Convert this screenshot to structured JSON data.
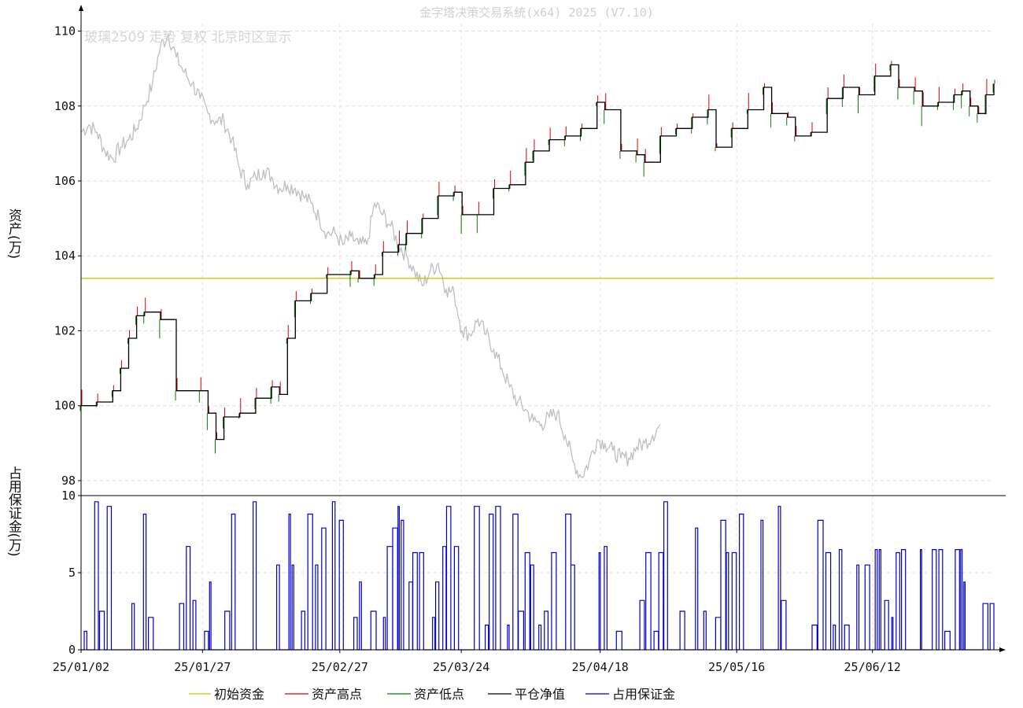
{
  "title": "金字塔决策交易系统(x64) 2025 (V7.10)",
  "subtitle": "玻璃2509 走势 复权 北京时区显示",
  "chart_data": [
    {
      "type": "line",
      "ylabel": "资产(万)",
      "ylim": [
        97.6,
        110.2
      ],
      "y_ticks": [
        "110",
        "108",
        "106",
        "104",
        "102",
        "100",
        "98"
      ],
      "x_ticks": [
        "25/01/02",
        "25/01/27",
        "25/02/27",
        "25/03/24",
        "25/04/18",
        "25/05/16",
        "25/06/12"
      ],
      "grid": true,
      "legend_position": "bottom",
      "series": [
        {
          "name": "初始资金",
          "color": "#c8c800",
          "values": [
            103.4
          ]
        },
        {
          "name": "资产高点",
          "color": "#e00000"
        },
        {
          "name": "资产低点",
          "color": "#008000"
        },
        {
          "name": "平仓净值",
          "color": "#000000",
          "points": [
            [
              0,
              100
            ],
            [
              2,
              100.1
            ],
            [
              4,
              100.4
            ],
            [
              5,
              101.0
            ],
            [
              6,
              101.8
            ],
            [
              7,
              102.4
            ],
            [
              8,
              102.5
            ],
            [
              10,
              102.3
            ],
            [
              12,
              100.4
            ],
            [
              15,
              100.4
            ],
            [
              16,
              99.8
            ],
            [
              17,
              99.1
            ],
            [
              18,
              99.7
            ],
            [
              20,
              99.8
            ],
            [
              22,
              100.2
            ],
            [
              24,
              100.5
            ],
            [
              25,
              100.3
            ],
            [
              26,
              101.8
            ],
            [
              27,
              102.8
            ],
            [
              29,
              103.0
            ],
            [
              31,
              103.5
            ],
            [
              34,
              103.6
            ],
            [
              35,
              103.4
            ],
            [
              37,
              103.5
            ],
            [
              38,
              104.1
            ],
            [
              40,
              104.3
            ],
            [
              41,
              104.6
            ],
            [
              43,
              105.0
            ],
            [
              45,
              105.6
            ],
            [
              47,
              105.7
            ],
            [
              48,
              105.1
            ],
            [
              50,
              105.1
            ],
            [
              52,
              105.8
            ],
            [
              54,
              105.9
            ],
            [
              56,
              106.5
            ],
            [
              57,
              106.8
            ],
            [
              59,
              107.1
            ],
            [
              61,
              107.2
            ],
            [
              63,
              107.4
            ],
            [
              65,
              108.1
            ],
            [
              66,
              107.9
            ],
            [
              68,
              106.8
            ],
            [
              70,
              106.7
            ],
            [
              71,
              106.5
            ],
            [
              73,
              107.2
            ],
            [
              75,
              107.4
            ],
            [
              77,
              107.7
            ],
            [
              79,
              107.9
            ],
            [
              80,
              106.9
            ],
            [
              82,
              107.4
            ],
            [
              84,
              107.9
            ],
            [
              86,
              108.5
            ],
            [
              87,
              107.8
            ],
            [
              89,
              107.7
            ],
            [
              90,
              107.2
            ],
            [
              92,
              107.3
            ],
            [
              94,
              108.2
            ],
            [
              96,
              108.5
            ],
            [
              98,
              108.3
            ],
            [
              100,
              108.8
            ],
            [
              102,
              109.1
            ],
            [
              103,
              108.5
            ],
            [
              105,
              108.4
            ],
            [
              106,
              108.0
            ],
            [
              108,
              108.1
            ],
            [
              110,
              108.3
            ],
            [
              111,
              108.4
            ],
            [
              112,
              108.0
            ],
            [
              113,
              107.8
            ],
            [
              114,
              108.3
            ],
            [
              115,
              108.6
            ]
          ]
        },
        {
          "name": "占用保证金",
          "color": "#0000cc"
        }
      ]
    },
    {
      "type": "line",
      "ylabel": "占用保证金(万)",
      "ylim": [
        0,
        10
      ],
      "y_ticks": [
        "10",
        "5",
        "0"
      ]
    },
    {
      "type": "line",
      "name": "玻璃2509",
      "color": "#bfbfbf",
      "points": [
        [
          0,
          107.3
        ],
        [
          1,
          107.5
        ],
        [
          2,
          107.3
        ],
        [
          3,
          106.8
        ],
        [
          4,
          106.6
        ],
        [
          5,
          106.9
        ],
        [
          6,
          107.1
        ],
        [
          7,
          107.4
        ],
        [
          8,
          108.0
        ],
        [
          9,
          108.6
        ],
        [
          10,
          109.6
        ],
        [
          11,
          109.9
        ],
        [
          12,
          109.3
        ],
        [
          13,
          108.9
        ],
        [
          14,
          108.6
        ],
        [
          15,
          108.2
        ],
        [
          16,
          107.8
        ],
        [
          17,
          107.6
        ],
        [
          18,
          107.6
        ],
        [
          19,
          107.1
        ],
        [
          20,
          106.3
        ],
        [
          21,
          105.9
        ],
        [
          22,
          106.1
        ],
        [
          23,
          106.3
        ],
        [
          24,
          106.1
        ],
        [
          25,
          105.8
        ],
        [
          26,
          105.9
        ],
        [
          27,
          105.8
        ],
        [
          28,
          105.6
        ],
        [
          29,
          105.4
        ],
        [
          30,
          105.0
        ],
        [
          31,
          104.6
        ],
        [
          32,
          104.6
        ],
        [
          33,
          104.3
        ],
        [
          34,
          104.5
        ],
        [
          35,
          104.3
        ],
        [
          36,
          104.3
        ],
        [
          37,
          105.4
        ],
        [
          38,
          105.1
        ],
        [
          39,
          104.8
        ],
        [
          40,
          104.3
        ],
        [
          41,
          104.0
        ],
        [
          42,
          103.6
        ],
        [
          43,
          103.2
        ],
        [
          44,
          103.6
        ],
        [
          45,
          103.8
        ],
        [
          46,
          103.1
        ],
        [
          47,
          103.0
        ],
        [
          48,
          102.0
        ],
        [
          49,
          101.9
        ],
        [
          50,
          102.3
        ],
        [
          51,
          101.9
        ],
        [
          52,
          101.5
        ],
        [
          53,
          101.0
        ],
        [
          54,
          100.5
        ],
        [
          55,
          100.1
        ],
        [
          56,
          99.9
        ],
        [
          57,
          99.6
        ],
        [
          58,
          99.5
        ],
        [
          59,
          99.7
        ],
        [
          60,
          99.8
        ],
        [
          61,
          99.2
        ],
        [
          62,
          98.5
        ],
        [
          63,
          98.1
        ],
        [
          64,
          98.5
        ],
        [
          65,
          99.1
        ],
        [
          66,
          99.0
        ],
        [
          67,
          98.8
        ],
        [
          68,
          98.6
        ],
        [
          69,
          98.6
        ],
        [
          70,
          98.9
        ],
        [
          71,
          99.0
        ],
        [
          72,
          99.2
        ],
        [
          73,
          99.5
        ]
      ]
    }
  ]
}
